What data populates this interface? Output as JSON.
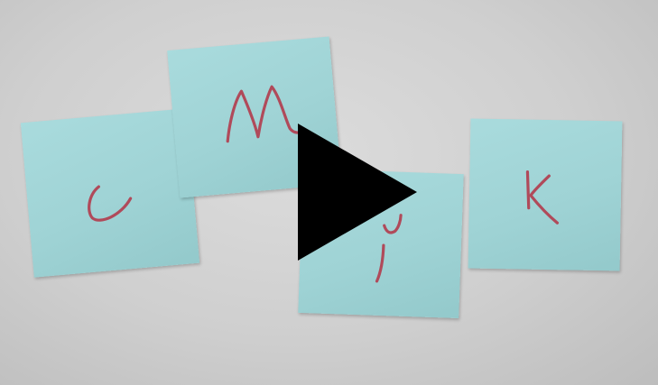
{
  "image": {
    "description_labels": [
      "C",
      "M",
      "Y",
      "K"
    ],
    "colors": {
      "background": "#cfcfcf",
      "note": "#a3d6d8",
      "ink": "#b04a5a",
      "play_button": "#000000"
    },
    "icons": {
      "play": "play-icon"
    }
  }
}
